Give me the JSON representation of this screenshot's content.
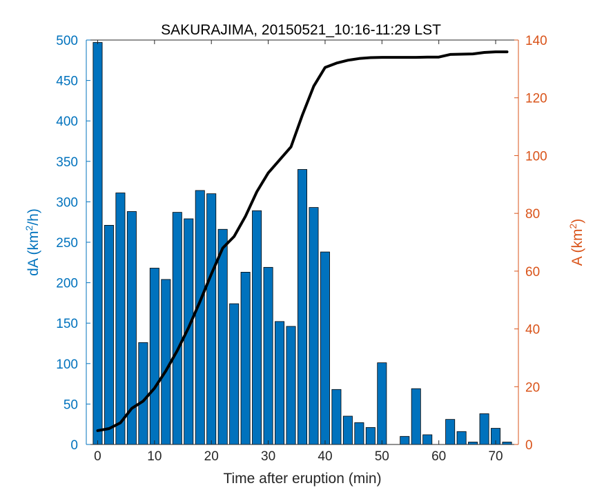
{
  "chart_data": {
    "type": "bar",
    "title": "SAKURAJIMA, 20150521_10:16-11:29 LST",
    "xlabel": "Time after eruption (min)",
    "ylabel_left": {
      "prefix": "dA (km",
      "sup": "2",
      "suffix": "/h)"
    },
    "ylabel_right": {
      "prefix": "A (km",
      "sup": "2",
      "suffix": ")"
    },
    "xlim": [
      -2,
      74
    ],
    "ylim_left": [
      0,
      500
    ],
    "ylim_right": [
      0,
      140
    ],
    "x_ticks": [
      0,
      10,
      20,
      30,
      40,
      50,
      60,
      70
    ],
    "y_ticks_left": [
      0,
      50,
      100,
      150,
      200,
      250,
      300,
      350,
      400,
      450,
      500
    ],
    "y_ticks_right": [
      0,
      20,
      40,
      60,
      80,
      100,
      120,
      140
    ],
    "colors": {
      "bar_fill": "#0072BD",
      "bar_edge": "#000000",
      "line": "#000000",
      "left_axis": "#0072BD",
      "right_axis": "#D95319"
    },
    "bars": {
      "x": [
        0,
        2,
        4,
        6,
        8,
        10,
        12,
        14,
        16,
        18,
        20,
        22,
        24,
        26,
        28,
        30,
        32,
        34,
        36,
        38,
        40,
        42,
        44,
        46,
        48,
        50,
        52,
        54,
        56,
        58,
        60,
        62,
        64,
        66,
        68,
        70,
        72
      ],
      "values": [
        497,
        271,
        311,
        288,
        126,
        218,
        204,
        287,
        279,
        314,
        310,
        266,
        174,
        213,
        289,
        219,
        152,
        146,
        340,
        293,
        238,
        68,
        35,
        27,
        21,
        101,
        0,
        10,
        69,
        12,
        0,
        31,
        16,
        3,
        38,
        20,
        3
      ]
    },
    "cumulative_line": {
      "x": [
        0,
        2,
        4,
        6,
        8,
        10,
        12,
        14,
        16,
        18,
        20,
        22,
        24,
        26,
        28,
        30,
        32,
        34,
        36,
        38,
        40,
        42,
        44,
        46,
        48,
        50,
        52,
        54,
        56,
        58,
        60,
        62,
        64,
        66,
        68,
        70,
        72
      ],
      "values": [
        4.8,
        5.5,
        7.5,
        12.5,
        15,
        19.5,
        25.5,
        32.5,
        40.5,
        49.5,
        59,
        68,
        72,
        79,
        87.5,
        94,
        98.5,
        103,
        114,
        124,
        130.5,
        132,
        133,
        133.6,
        133.9,
        134,
        134,
        134,
        134,
        134.1,
        134.1,
        135,
        135.1,
        135.2,
        135.7,
        135.9,
        135.9
      ]
    }
  }
}
